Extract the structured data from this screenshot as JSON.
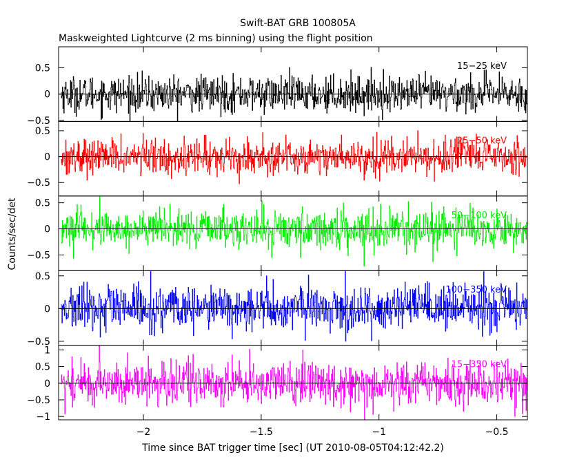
{
  "chart_data": {
    "type": "line",
    "title": "Swift-BAT GRB 100805A",
    "subtitle": "Maskweighted Lightcurve (2 ms binning) using the flight position",
    "xlabel": "Time since BAT trigger time [sec] (UT 2010-08-05T04:12:42.2)",
    "ylabel": "Counts/sec/det",
    "xlim": [
      -2.36,
      -0.37
    ],
    "x_data_range": [
      -2.35,
      -0.36
    ],
    "x_ticks": [
      -2,
      -1.5,
      -1,
      -0.5
    ],
    "x_tick_labels": [
      "−2",
      "−1.5",
      "−1",
      "−0.5"
    ],
    "grid": false,
    "bin_width_sec": 0.002,
    "panels": [
      {
        "name": "15−25 keV",
        "color": "#000000",
        "ylim": [
          -0.52,
          0.9
        ],
        "y_ticks": [
          -0.5,
          0,
          0.5
        ],
        "y_tick_labels": [
          "−0.5",
          "0",
          "0.5"
        ],
        "typical_amplitude": 0.17
      },
      {
        "name": "25−50 keV",
        "color": "#ff0000",
        "ylim": [
          -0.76,
          0.68
        ],
        "y_ticks": [
          -0.5,
          0,
          0.5
        ],
        "y_tick_labels": [
          "−0.5",
          "0",
          "0.5"
        ],
        "typical_amplitude": 0.17
      },
      {
        "name": "50−100 keV",
        "color": "#00ee00",
        "ylim": [
          -0.8,
          0.63
        ],
        "y_ticks": [
          -0.5,
          0,
          0.5
        ],
        "y_tick_labels": [
          "−0.5",
          "0",
          "0.5"
        ],
        "typical_amplitude": 0.18
      },
      {
        "name": "100−350 keV",
        "color": "#0000ff",
        "ylim": [
          -0.56,
          0.58
        ],
        "y_ticks": [
          -0.5,
          0,
          0.5
        ],
        "y_tick_labels": [
          "−0.5",
          "0",
          "0.5"
        ],
        "typical_amplitude": 0.17
      },
      {
        "name": "15−350 keV",
        "color": "#ff00ff",
        "ylim": [
          -1.1,
          1.14
        ],
        "y_ticks": [
          -1,
          -0.5,
          0,
          0.5,
          1
        ],
        "y_tick_labels": [
          "−1",
          "−0.5",
          "0",
          "0.5",
          "1"
        ],
        "typical_amplitude": 0.33
      }
    ]
  }
}
